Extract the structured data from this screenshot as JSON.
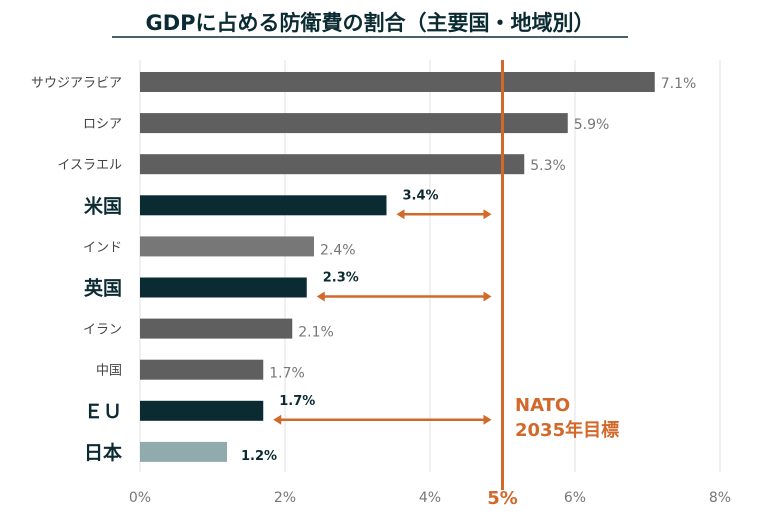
{
  "chart_data": {
    "type": "bar",
    "orientation": "horizontal",
    "title": "GDPに占める防衛費の割合（主要国・地域別）",
    "categories": [
      "サウジアラビア",
      "ロシア",
      "イスラエル",
      "米国",
      "インド",
      "英国",
      "イラン",
      "中国",
      "ＥＵ",
      "日本"
    ],
    "values": [
      7.1,
      5.9,
      5.3,
      3.4,
      2.4,
      2.3,
      2.1,
      1.7,
      1.7,
      1.2
    ],
    "data_labels": [
      "7.1%",
      "5.9%",
      "5.3%",
      "3.4%",
      "2.4%",
      "2.3%",
      "2.1%",
      "1.7%",
      "1.7%",
      "1.2%"
    ],
    "highlight": [
      false,
      false,
      false,
      true,
      false,
      true,
      false,
      false,
      true,
      true
    ],
    "bar_colors": [
      "#5f5f5f",
      "#5f5f5f",
      "#5f5f5f",
      "#0b2b33",
      "#777777",
      "#0b2b33",
      "#5f5f5f",
      "#5f5f5f",
      "#0b2b33",
      "#8fabad"
    ],
    "xlim": [
      0,
      8
    ],
    "xticks": [
      "0%",
      "2%",
      "4%",
      "6%",
      "8%"
    ],
    "xtick_values": [
      0,
      2,
      4,
      6,
      8
    ],
    "grid": true,
    "reference_line": {
      "value": 5,
      "label": "5%",
      "annotation": [
        "NATO",
        "2035年目標"
      ],
      "color": "#d2692a"
    },
    "gap_arrows": [
      "米国",
      "英国",
      "ＥＵ"
    ]
  }
}
